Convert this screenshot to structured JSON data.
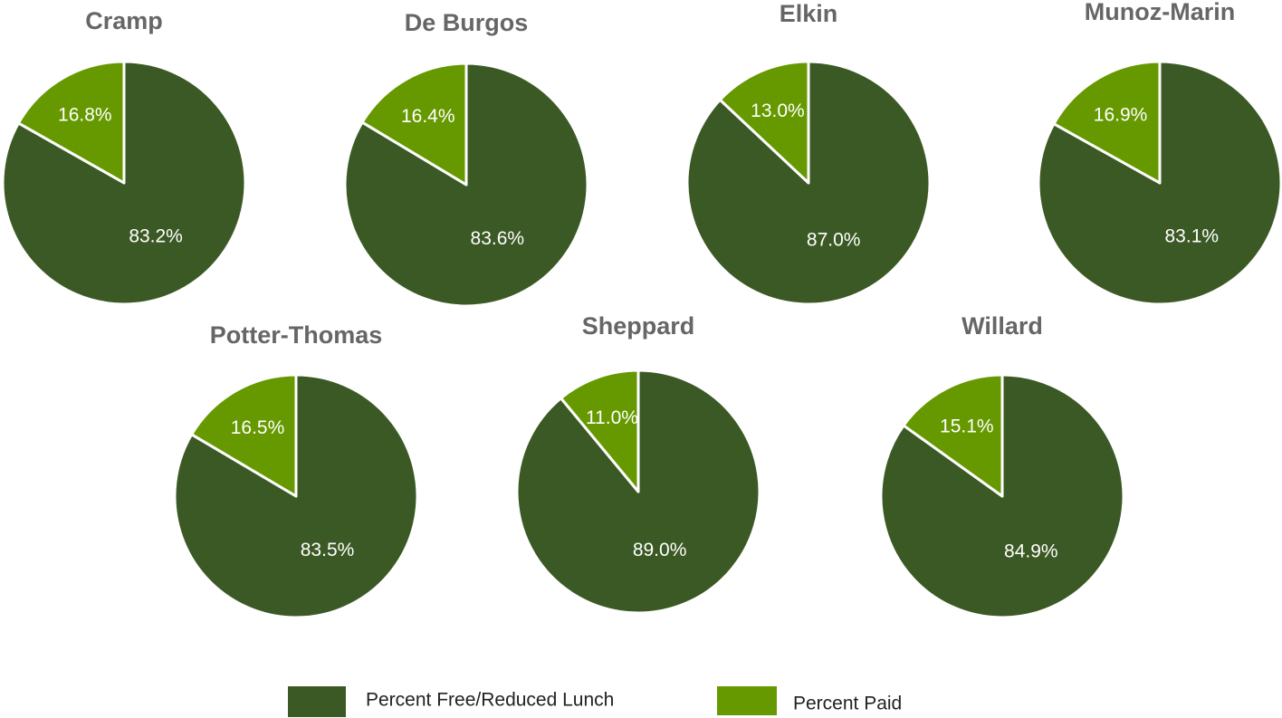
{
  "legend": [
    {
      "name": "Percent Free/Reduced Lunch",
      "color": "#3b5924"
    },
    {
      "name": "Percent Paid",
      "color": "#669900"
    }
  ],
  "chart_data": [
    {
      "type": "pie",
      "title": "Cramp",
      "values": [
        83.2,
        16.8
      ],
      "value_labels": [
        "83.2%",
        "16.8%"
      ]
    },
    {
      "type": "pie",
      "title": "De Burgos",
      "values": [
        83.6,
        16.4
      ],
      "value_labels": [
        "83.6%",
        "16.4%"
      ]
    },
    {
      "type": "pie",
      "title": "Elkin",
      "values": [
        87.0,
        13.0
      ],
      "value_labels": [
        "87.0%",
        "13.0%"
      ]
    },
    {
      "type": "pie",
      "title": "Munoz-Marin",
      "values": [
        83.1,
        16.9
      ],
      "value_labels": [
        "83.1%",
        "16.9%"
      ]
    },
    {
      "type": "pie",
      "title": "Potter-Thomas",
      "values": [
        83.5,
        16.5
      ],
      "value_labels": [
        "83.5%",
        "16.5%"
      ]
    },
    {
      "type": "pie",
      "title": "Sheppard",
      "values": [
        89.0,
        11.0
      ],
      "value_labels": [
        "89.0%",
        "11.0%"
      ]
    },
    {
      "type": "pie",
      "title": "Willard",
      "values": [
        84.9,
        15.1
      ],
      "value_labels": [
        "84.9%",
        "15.1%"
      ]
    }
  ]
}
